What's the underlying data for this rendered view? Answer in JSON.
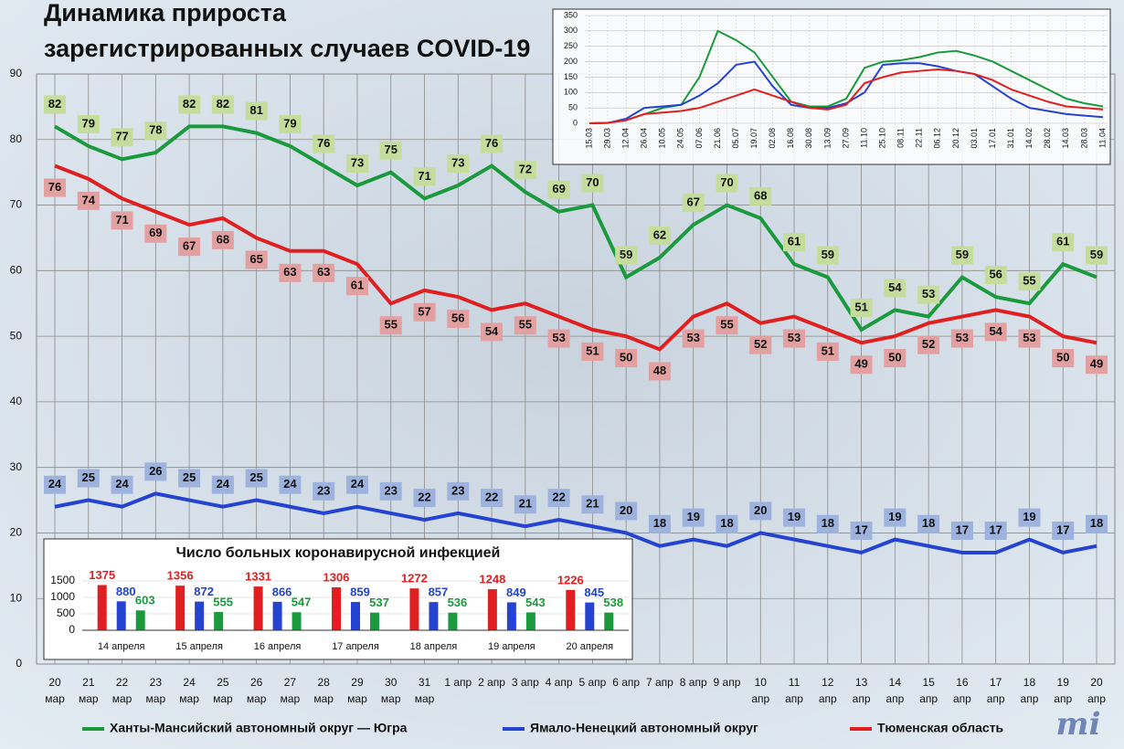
{
  "logo": "mi",
  "chart_data": [
    {
      "type": "line",
      "title": [
        "Динамика прироста",
        "зарегистрированных случаев COVID-19"
      ],
      "categories": [
        "20 мар",
        "21 мар",
        "22 мар",
        "23 мар",
        "24 мар",
        "25 мар",
        "26 мар",
        "27 мар",
        "28 мар",
        "29 мар",
        "30 мар",
        "31 мар",
        "1 апр",
        "2 апр",
        "3 апр",
        "4 апр",
        "5 апр",
        "6 апр",
        "7 апр",
        "8 апр",
        "9 апр",
        "10 апр",
        "11 апр",
        "12 апр",
        "13 апр",
        "14 апр",
        "15 апр",
        "16 апр",
        "17 апр",
        "18 апр",
        "19 апр",
        "20 апр"
      ],
      "series": [
        {
          "name": "Ханты-Мансийский автономный округ — Югра",
          "color": "#1a9a3c",
          "values": [
            82,
            79,
            77,
            78,
            82,
            82,
            81,
            79,
            76,
            73,
            75,
            71,
            73,
            76,
            72,
            69,
            70,
            59,
            62,
            67,
            70,
            68,
            61,
            59,
            51,
            54,
            53,
            59,
            56,
            55,
            61,
            59
          ]
        },
        {
          "name": "Ямало-Ненецкий автономный округ",
          "color": "#2343d0",
          "values": [
            24,
            25,
            24,
            26,
            25,
            24,
            25,
            24,
            23,
            24,
            23,
            22,
            23,
            22,
            21,
            22,
            21,
            20,
            18,
            19,
            18,
            20,
            19,
            18,
            17,
            19,
            18,
            17,
            17,
            19,
            17,
            18
          ]
        },
        {
          "name": "Тюменская область",
          "color": "#e02020",
          "values": [
            76,
            74,
            71,
            69,
            67,
            68,
            65,
            63,
            63,
            61,
            55,
            57,
            56,
            54,
            55,
            53,
            51,
            50,
            48,
            53,
            55,
            52,
            53,
            51,
            49,
            50,
            52,
            53,
            54,
            53,
            50,
            49
          ]
        }
      ],
      "ylim": [
        0,
        90
      ],
      "yticks": [
        0,
        10,
        20,
        30,
        40,
        50,
        60,
        70,
        80,
        90
      ],
      "grid": true,
      "legend": "bottom"
    },
    {
      "type": "line",
      "categories": [
        "15.03",
        "29.03",
        "12.04",
        "26.04",
        "10.05",
        "24.05",
        "07.06",
        "21.06",
        "05.07",
        "19.07",
        "02.08",
        "16.08",
        "30.08",
        "13.09",
        "27.09",
        "11.10",
        "25.10",
        "08.11",
        "22.11",
        "06.12",
        "20.12",
        "03.01",
        "17.01",
        "31.01",
        "14.02",
        "28.02",
        "14.03",
        "28.03",
        "11.04"
      ],
      "series": [
        {
          "color": "#1a9a3c",
          "values": [
            0,
            2,
            10,
            30,
            50,
            60,
            150,
            300,
            270,
            230,
            150,
            70,
            55,
            55,
            80,
            180,
            200,
            205,
            215,
            230,
            235,
            220,
            200,
            170,
            140,
            110,
            80,
            65,
            55
          ]
        },
        {
          "color": "#2343d0",
          "values": [
            0,
            1,
            15,
            50,
            55,
            60,
            90,
            130,
            190,
            200,
            120,
            60,
            50,
            50,
            65,
            100,
            190,
            195,
            195,
            185,
            170,
            160,
            120,
            80,
            50,
            40,
            30,
            25,
            20
          ]
        },
        {
          "color": "#e02020",
          "values": [
            0,
            1,
            10,
            30,
            35,
            40,
            50,
            70,
            90,
            110,
            90,
            70,
            50,
            45,
            60,
            130,
            150,
            165,
            170,
            175,
            170,
            160,
            140,
            110,
            90,
            70,
            55,
            50,
            45
          ]
        }
      ],
      "ylim": [
        0,
        350
      ],
      "yticks": [
        0,
        50,
        100,
        150,
        200,
        250,
        300,
        350
      ],
      "grid": true
    },
    {
      "type": "bar",
      "title": "Число больных коронавирусной  инфекцией",
      "categories": [
        "14 апреля",
        "15 апреля",
        "16 апреля",
        "17 апреля",
        "18 апреля",
        "19 апреля",
        "20 апреля"
      ],
      "series": [
        {
          "color": "#e02020",
          "values": [
            1375,
            1356,
            1331,
            1306,
            1272,
            1248,
            1226
          ]
        },
        {
          "color": "#2343d0",
          "values": [
            880,
            872,
            866,
            859,
            857,
            849,
            845
          ]
        },
        {
          "color": "#1a9a3c",
          "values": [
            603,
            555,
            547,
            537,
            536,
            543,
            538
          ]
        }
      ],
      "ylim": [
        0,
        1500
      ],
      "yticks": [
        0,
        500,
        1000,
        1500
      ],
      "grid": true
    }
  ]
}
